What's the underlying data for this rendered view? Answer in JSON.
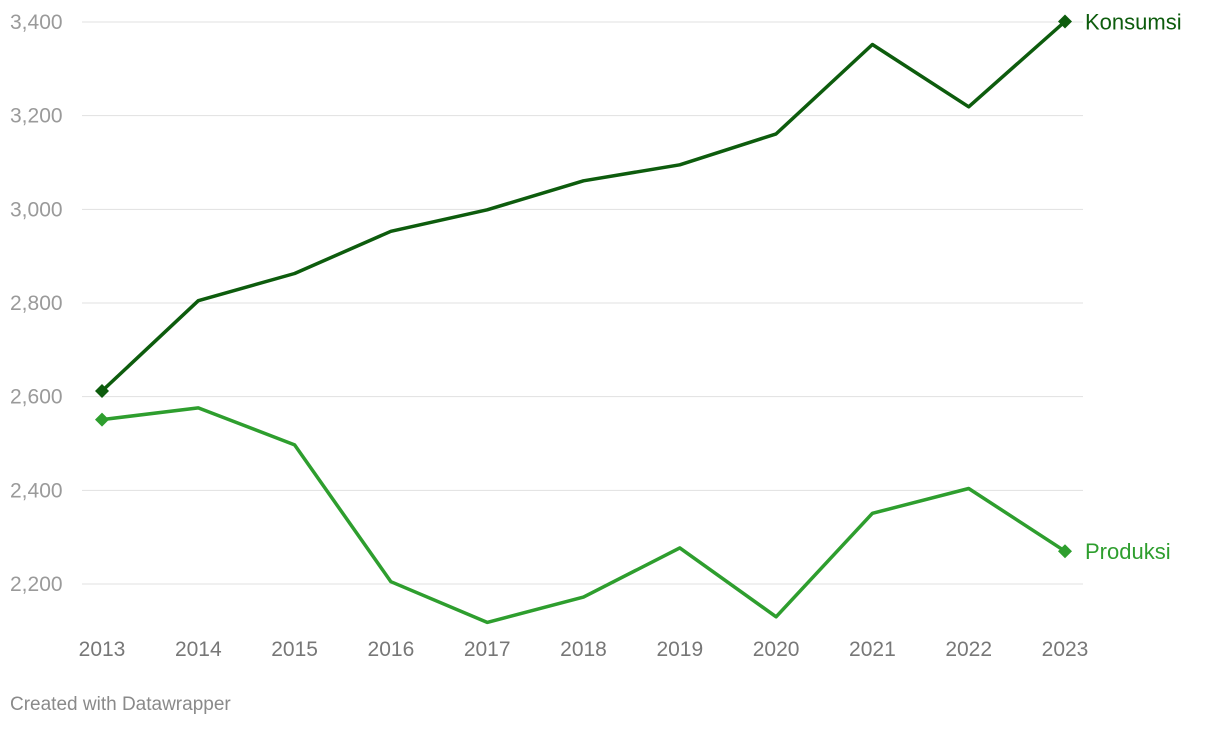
{
  "chart_data": {
    "type": "line",
    "x": [
      "2013",
      "2014",
      "2015",
      "2016",
      "2017",
      "2018",
      "2019",
      "2020",
      "2021",
      "2022",
      "2023"
    ],
    "series": [
      {
        "name": "Konsumsi",
        "color": "#0d5c0d",
        "values": [
          2612,
          2805,
          2863,
          2953,
          2999,
          3061,
          3095,
          3161,
          3352,
          3219,
          3401
        ]
      },
      {
        "name": "Produksi",
        "color": "#2e9e2e",
        "values": [
          2551,
          2576,
          2497,
          2205,
          2118,
          2172,
          2277,
          2130,
          2351,
          2404,
          2270
        ]
      }
    ],
    "y_ticks": [
      2200,
      2400,
      2600,
      2800,
      3000,
      3200,
      3400
    ],
    "y_tick_labels": [
      "2,200",
      "2,400",
      "2,600",
      "2,800",
      "3,000",
      "3,200",
      "3,400"
    ],
    "ylim": [
      2125,
      3400
    ],
    "grid": true,
    "legend": "direct labels at line ends"
  },
  "footer": "Created with Datawrapper"
}
